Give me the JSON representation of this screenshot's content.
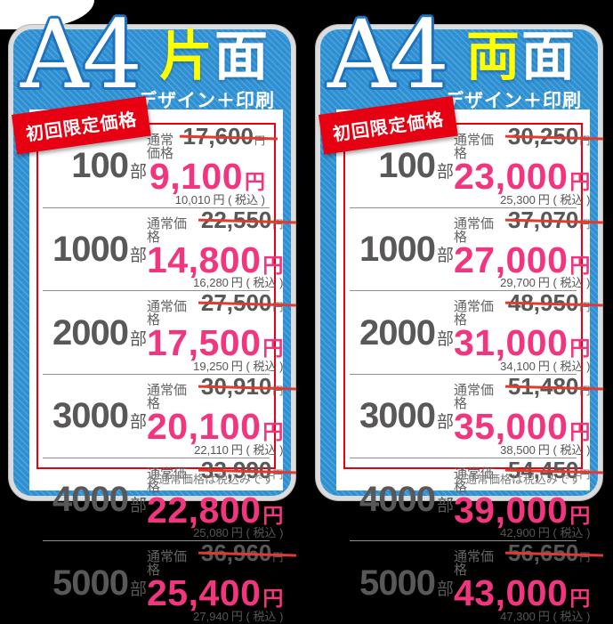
{
  "colors": {
    "card_blue": "#2d90d3",
    "accent_red": "#e60012",
    "promo_pink": "#f1357f",
    "strike_red": "#e23a2e",
    "text_gray": "#595757",
    "highlight_yellow": "#ffff00",
    "background": "#000000"
  },
  "cards": [
    {
      "size": "A4",
      "side_accent": "片",
      "side_rest": "面",
      "subtitle": "デザイン＋印刷",
      "ribbon": "初回限定価格",
      "regular_label": "通常価格",
      "yen": "円",
      "tax_suffix": "円 ( 税込 )",
      "footnote": "※通常価格は税込みです",
      "rows": [
        {
          "qty": "100",
          "unit": "部",
          "regular": "17,600",
          "price": "9,100",
          "tax": "10,010"
        },
        {
          "qty": "1000",
          "unit": "部",
          "regular": "22,550",
          "price": "14,800",
          "tax": "16,280"
        },
        {
          "qty": "2000",
          "unit": "部",
          "regular": "27,500",
          "price": "17,500",
          "tax": "19,250"
        },
        {
          "qty": "3000",
          "unit": "部",
          "regular": "30,910",
          "price": "20,100",
          "tax": "22,110"
        },
        {
          "qty": "4000",
          "unit": "部",
          "regular": "33,990",
          "price": "22,800",
          "tax": "25,080"
        },
        {
          "qty": "5000",
          "unit": "部",
          "regular": "36,960",
          "price": "25,400",
          "tax": "27,940"
        }
      ]
    },
    {
      "size": "A4",
      "side_accent": "両",
      "side_rest": "面",
      "subtitle": "デザイン＋印刷",
      "ribbon": "初回限定価格",
      "regular_label": "通常価格",
      "yen": "円",
      "tax_suffix": "円 ( 税込 )",
      "footnote": "※通常価格は税込みです",
      "rows": [
        {
          "qty": "100",
          "unit": "部",
          "regular": "30,250",
          "price": "23,000",
          "tax": "25,300"
        },
        {
          "qty": "1000",
          "unit": "部",
          "regular": "37,070",
          "price": "27,000",
          "tax": "29,700"
        },
        {
          "qty": "2000",
          "unit": "部",
          "regular": "48,950",
          "price": "31,000",
          "tax": "34,100"
        },
        {
          "qty": "3000",
          "unit": "部",
          "regular": "51,480",
          "price": "35,000",
          "tax": "38,500"
        },
        {
          "qty": "4000",
          "unit": "部",
          "regular": "54,450",
          "price": "39,000",
          "tax": "42,900"
        },
        {
          "qty": "5000",
          "unit": "部",
          "regular": "56,650",
          "price": "43,000",
          "tax": "47,300"
        }
      ]
    }
  ]
}
